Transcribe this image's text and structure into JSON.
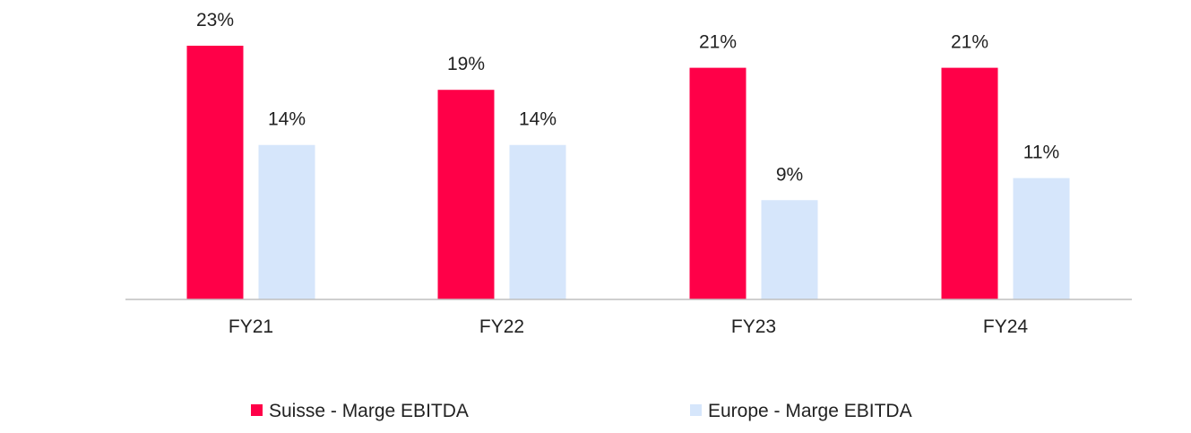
{
  "chart_data": {
    "type": "bar",
    "categories": [
      "FY21",
      "FY22",
      "FY23",
      "FY24"
    ],
    "series": [
      {
        "name": "Suisse - Marge EBITDA",
        "values": [
          23,
          19,
          21,
          21
        ],
        "labels": [
          "23%",
          "19%",
          "21%",
          "21%"
        ],
        "color": "#FF0048"
      },
      {
        "name": "Europe - Marge EBITDA",
        "values": [
          14,
          14,
          9,
          11
        ],
        "labels": [
          "14%",
          "14%",
          "9%",
          "11%"
        ],
        "color": "#D6E6FB"
      }
    ],
    "title": "",
    "xlabel": "",
    "ylabel": "",
    "ylim": [
      0,
      23
    ],
    "grid": false,
    "legend_position": "bottom"
  }
}
